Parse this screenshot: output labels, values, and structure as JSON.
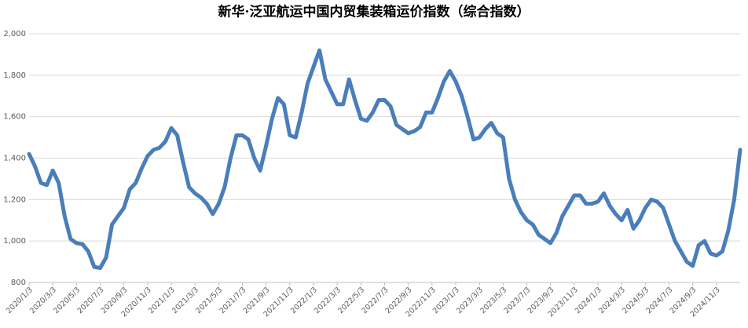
{
  "chart_data": {
    "type": "line",
    "title": "新华·泛亚航运中国内贸集装箱运价指数（综合指数）",
    "categories": [
      "2020/1/3",
      null,
      null,
      null,
      "2020/3/3",
      null,
      null,
      null,
      "2020/5/3",
      null,
      null,
      null,
      "2020/7/3",
      null,
      null,
      null,
      "2020/9/3",
      null,
      null,
      null,
      "2020/11/3",
      null,
      null,
      null,
      "2021/1/3",
      null,
      null,
      null,
      "2021/3/3",
      null,
      null,
      null,
      "2021/5/3",
      null,
      null,
      null,
      "2021/7/3",
      null,
      null,
      null,
      "2021/9/3",
      null,
      null,
      null,
      "2021/11/3",
      null,
      null,
      null,
      "2022/1/3",
      null,
      null,
      null,
      "2022/3/3",
      null,
      null,
      null,
      "2022/5/3",
      null,
      null,
      null,
      "2022/7/3",
      null,
      null,
      null,
      "2022/9/3",
      null,
      null,
      null,
      "2022/11/3",
      null,
      null,
      null,
      "2023/1/3",
      null,
      null,
      null,
      "2023/3/3",
      null,
      null,
      null,
      "2023/5/3",
      null,
      null,
      null,
      "2023/7/3",
      null,
      null,
      null,
      "2023/9/3",
      null,
      null,
      null,
      "2023/11/3",
      null,
      null,
      null,
      "2024/1/3",
      null,
      null,
      null,
      "2024/3/3",
      null,
      null,
      null,
      "2024/5/3",
      null,
      null,
      null,
      "2024/7/3",
      null,
      null,
      null,
      "2024/9/3",
      null,
      null,
      null,
      "2024/11/3",
      null,
      null,
      null,
      null
    ],
    "series": [
      {
        "color": "#4a7ebb",
        "values": [
          1420,
          1360,
          1280,
          1270,
          1340,
          1280,
          1120,
          1010,
          990,
          985,
          950,
          875,
          870,
          920,
          1080,
          1120,
          1160,
          1250,
          1280,
          1350,
          1410,
          1440,
          1450,
          1480,
          1545,
          1510,
          1380,
          1260,
          1230,
          1210,
          1180,
          1130,
          1180,
          1260,
          1400,
          1510,
          1510,
          1490,
          1400,
          1340,
          1460,
          1590,
          1690,
          1660,
          1510,
          1500,
          1620,
          1760,
          1840,
          1920,
          1780,
          1720,
          1660,
          1660,
          1780,
          1680,
          1590,
          1580,
          1620,
          1680,
          1680,
          1650,
          1560,
          1540,
          1520,
          1530,
          1550,
          1620,
          1620,
          1690,
          1770,
          1820,
          1770,
          1700,
          1600,
          1490,
          1500,
          1540,
          1570,
          1520,
          1500,
          1300,
          1200,
          1140,
          1100,
          1080,
          1030,
          1010,
          990,
          1040,
          1120,
          1170,
          1220,
          1220,
          1180,
          1180,
          1190,
          1230,
          1170,
          1130,
          1100,
          1150,
          1060,
          1100,
          1160,
          1200,
          1190,
          1160,
          1080,
          1000,
          950,
          900,
          880,
          980,
          1000,
          940,
          930,
          950,
          1050,
          1200,
          1440
        ]
      }
    ],
    "ylim": [
      800,
      2000
    ],
    "yticks": [
      800,
      {
        "value": 1000,
        "label": "1,000"
      },
      {
        "value": 1200,
        "label": "1,200"
      },
      {
        "value": 1400,
        "label": "1,400"
      },
      {
        "value": 1600,
        "label": "1,600"
      },
      {
        "value": 1800,
        "label": "1,800"
      },
      {
        "value": 2000,
        "label": "2,000"
      }
    ],
    "grid": true
  }
}
